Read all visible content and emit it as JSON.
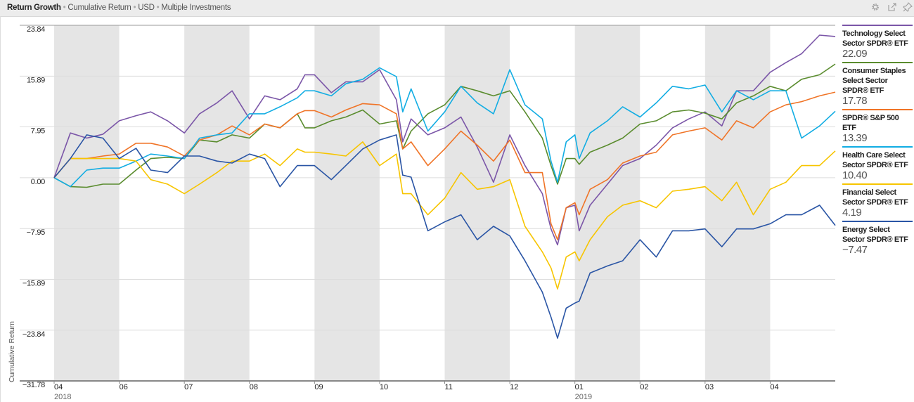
{
  "header": {
    "title": "Return Growth",
    "crumbs": [
      "Cumulative Return",
      "USD",
      "Multiple Investments"
    ],
    "icons": [
      "settings-gear-icon",
      "export-icon",
      "pin-icon"
    ]
  },
  "chart_data": {
    "type": "line",
    "title": "Return Growth",
    "xlabel": "",
    "ylabel": "Cumulative Return",
    "ylim": [
      -31.78,
      23.84
    ],
    "xlim": [
      "2018-04-02",
      "2019-04-30"
    ],
    "grid": true,
    "legend_placement": "right",
    "yticks": [
      {
        "value": 23.84,
        "label": "23.84"
      },
      {
        "value": 15.89,
        "label": "15.89"
      },
      {
        "value": 7.95,
        "label": "7.95"
      },
      {
        "value": 0,
        "label": "0.00"
      },
      {
        "value": -7.95,
        "label": "−7.95"
      },
      {
        "value": -15.89,
        "label": "−15.89"
      },
      {
        "value": -23.84,
        "label": "−23.84"
      },
      {
        "value": -31.78,
        "label": "−31.78"
      }
    ],
    "xticks": [
      {
        "label": "04",
        "year": "2018",
        "date": "2018-04-02",
        "shaded": true
      },
      {
        "label": "06",
        "year": "",
        "date": "2018-06-01",
        "shaded": false
      },
      {
        "label": "07",
        "year": "",
        "date": "2018-07-02",
        "shaded": true
      },
      {
        "label": "08",
        "year": "",
        "date": "2018-08-01",
        "shaded": false
      },
      {
        "label": "09",
        "year": "",
        "date": "2018-09-04",
        "shaded": true
      },
      {
        "label": "10",
        "year": "",
        "date": "2018-10-01",
        "shaded": false
      },
      {
        "label": "11",
        "year": "",
        "date": "2018-11-01",
        "shaded": true
      },
      {
        "label": "12",
        "year": "",
        "date": "2018-12-03",
        "shaded": false
      },
      {
        "label": "01",
        "year": "2019",
        "date": "2019-01-02",
        "shaded": true
      },
      {
        "label": "02",
        "year": "",
        "date": "2019-02-01",
        "shaded": false
      },
      {
        "label": "03",
        "year": "",
        "date": "2019-03-01",
        "shaded": true
      },
      {
        "label": "04",
        "year": "",
        "date": "2019-04-01",
        "shaded": false
      }
    ],
    "x": [
      "2018-04-02",
      "2018-04-17",
      "2018-05-02",
      "2018-05-17",
      "2018-06-01",
      "2018-06-09",
      "2018-06-16",
      "2018-06-24",
      "2018-07-02",
      "2018-07-09",
      "2018-07-17",
      "2018-07-24",
      "2018-08-01",
      "2018-08-09",
      "2018-08-17",
      "2018-08-26",
      "2018-08-30",
      "2018-09-04",
      "2018-09-11",
      "2018-09-17",
      "2018-09-24",
      "2018-10-01",
      "2018-10-09",
      "2018-10-12",
      "2018-10-16",
      "2018-10-24",
      "2018-11-01",
      "2018-11-09",
      "2018-11-17",
      "2018-11-25",
      "2018-12-03",
      "2018-12-10",
      "2018-12-18",
      "2018-12-22",
      "2018-12-25",
      "2018-12-29",
      "2019-01-02",
      "2019-01-04",
      "2019-01-09",
      "2019-01-17",
      "2019-01-24",
      "2019-02-01",
      "2019-02-08",
      "2019-02-15",
      "2019-02-22",
      "2019-03-01",
      "2019-03-09",
      "2019-03-16",
      "2019-03-24",
      "2019-04-01",
      "2019-04-08",
      "2019-04-15",
      "2019-04-23",
      "2019-04-30"
    ],
    "series": [
      {
        "name": "Technology Select Sector SPDR® ETF",
        "last": "22.09",
        "color": "#7b56a8",
        "values": [
          0,
          7.0,
          6.2,
          6.8,
          8.9,
          9.7,
          10.3,
          8.9,
          7.0,
          10.0,
          11.7,
          13.6,
          9.2,
          12.8,
          12.2,
          13.9,
          16.1,
          16.1,
          13.3,
          15.0,
          15.0,
          16.9,
          12.2,
          5.6,
          9.2,
          6.7,
          7.8,
          9.5,
          4.8,
          -0.7,
          6.7,
          1.9,
          -2.5,
          -8.0,
          -10.5,
          -4.7,
          -4.3,
          -8.3,
          -4.3,
          -1.0,
          1.9,
          3.0,
          5.1,
          7.8,
          9.2,
          10.3,
          8.1,
          13.6,
          13.6,
          16.5,
          18.0,
          19.4,
          22.3,
          22.09
        ]
      },
      {
        "name": "Consumer Staples Select Sector SPDR® ETF",
        "last": "17.78",
        "color": "#5a8c2e",
        "values": [
          0,
          -1.4,
          -1.5,
          -1.0,
          -1.0,
          1.2,
          3.0,
          3.2,
          3.0,
          5.9,
          5.6,
          6.7,
          6.2,
          8.4,
          7.8,
          10.0,
          7.8,
          7.8,
          8.9,
          9.5,
          10.6,
          8.4,
          8.9,
          4.5,
          7.3,
          10.0,
          11.4,
          14.3,
          13.6,
          12.8,
          13.6,
          10.3,
          6.2,
          1.9,
          -1.0,
          3.0,
          3.0,
          2.1,
          4.0,
          5.1,
          6.2,
          8.4,
          8.9,
          10.3,
          10.6,
          10.1,
          9.2,
          11.7,
          12.8,
          14.3,
          13.6,
          15.4,
          16.1,
          17.78
        ]
      },
      {
        "name": "SPDR® S&P 500 ETF",
        "last": "13.39",
        "color": "#f07427",
        "values": [
          0,
          3.0,
          3.0,
          3.4,
          3.7,
          5.4,
          5.4,
          4.8,
          3.4,
          5.9,
          6.7,
          8.1,
          6.7,
          8.4,
          7.8,
          10.0,
          10.5,
          10.5,
          9.5,
          10.6,
          11.6,
          11.4,
          10.0,
          4.5,
          5.6,
          1.9,
          4.5,
          7.3,
          5.1,
          2.6,
          5.9,
          0.8,
          0.8,
          -7.2,
          -9.7,
          -4.7,
          -3.9,
          -5.8,
          -1.8,
          -0.3,
          2.3,
          3.4,
          4.0,
          6.7,
          7.3,
          7.8,
          5.9,
          8.9,
          7.8,
          10.3,
          11.4,
          11.9,
          12.8,
          13.39
        ]
      },
      {
        "name": "Health Care Select Sector SPDR® ETF",
        "last": "10.40",
        "color": "#12ade3",
        "values": [
          0,
          -1.4,
          1.2,
          1.5,
          1.5,
          2.6,
          3.7,
          3.4,
          3.0,
          6.2,
          6.7,
          7.0,
          10.0,
          10.0,
          11.1,
          12.5,
          13.6,
          13.6,
          12.8,
          14.7,
          15.4,
          17.2,
          15.8,
          10.3,
          13.9,
          7.3,
          10.3,
          14.3,
          11.7,
          10.0,
          16.9,
          11.4,
          9.2,
          2.6,
          -0.7,
          5.6,
          6.7,
          3.0,
          7.0,
          8.9,
          11.1,
          9.5,
          11.7,
          14.3,
          13.9,
          14.5,
          10.3,
          13.6,
          12.2,
          13.6,
          13.6,
          6.2,
          8.1,
          10.4
        ]
      },
      {
        "name": "Financial Select Sector SPDR® ETF",
        "last": "4.19",
        "color": "#f7c500",
        "values": [
          0,
          3.0,
          3.0,
          3.0,
          3.0,
          2.6,
          -0.3,
          -1.0,
          -2.5,
          -1.0,
          0.8,
          2.6,
          2.6,
          3.7,
          1.9,
          4.5,
          4.0,
          4.0,
          3.7,
          3.4,
          5.6,
          1.9,
          3.7,
          -2.5,
          -2.5,
          -5.8,
          -3.2,
          0.8,
          -1.8,
          -1.4,
          -0.3,
          -7.6,
          -11.6,
          -14.1,
          -17.4,
          -12.4,
          -11.6,
          -13.0,
          -9.7,
          -6.1,
          -4.3,
          -3.6,
          -4.7,
          -2.1,
          -1.8,
          -1.4,
          -3.6,
          -0.7,
          -5.8,
          -1.8,
          -0.7,
          1.9,
          1.9,
          4.19
        ]
      },
      {
        "name": "Energy Select Sector SPDR® ETF",
        "last": "−7.47",
        "color": "#2a55a5",
        "values": [
          0,
          3.0,
          6.7,
          6.2,
          3.0,
          4.6,
          1.2,
          0.8,
          3.4,
          3.4,
          2.6,
          2.3,
          3.7,
          3.0,
          -1.4,
          1.9,
          1.9,
          1.9,
          -0.3,
          1.9,
          4.5,
          5.9,
          6.7,
          0.4,
          0.1,
          -8.3,
          -6.9,
          -5.8,
          -9.7,
          -7.6,
          -9.1,
          -13.0,
          -17.9,
          -21.8,
          -25.1,
          -20.4,
          -19.6,
          -19.3,
          -14.9,
          -13.8,
          -13.0,
          -9.7,
          -12.4,
          -8.3,
          -8.3,
          -8.0,
          -10.8,
          -8.0,
          -8.0,
          -7.2,
          -5.8,
          -5.8,
          -4.3,
          -7.47
        ]
      }
    ]
  }
}
